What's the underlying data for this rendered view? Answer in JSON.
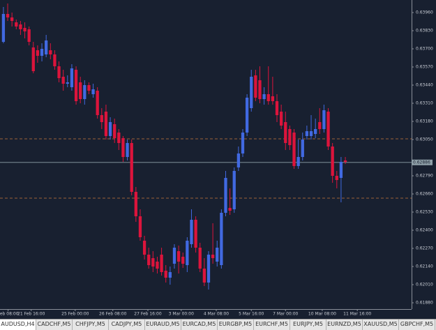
{
  "chart_data": {
    "type": "candlestick",
    "up_color": "#4169e1",
    "down_color": "#dc143c",
    "ylim": [
      0.61835,
      0.6405
    ],
    "yticks": [
      {
        "value": 0.6396,
        "label": "0.63960"
      },
      {
        "value": 0.6383,
        "label": "0.63830"
      },
      {
        "value": 0.637,
        "label": "0.63700"
      },
      {
        "value": 0.6357,
        "label": "0.63570"
      },
      {
        "value": 0.6344,
        "label": "0.63440"
      },
      {
        "value": 0.6331,
        "label": "0.63310"
      },
      {
        "value": 0.6318,
        "label": "0.63180"
      },
      {
        "value": 0.6305,
        "label": "0.63050"
      },
      {
        "value": 0.6279,
        "label": "0.62790"
      },
      {
        "value": 0.6266,
        "label": "0.62660"
      },
      {
        "value": 0.6253,
        "label": "0.62530"
      },
      {
        "value": 0.624,
        "label": "0.62400"
      },
      {
        "value": 0.6227,
        "label": "0.62270"
      },
      {
        "value": 0.6214,
        "label": "0.62140"
      },
      {
        "value": 0.6201,
        "label": "0.62010"
      },
      {
        "value": 0.6188,
        "label": "0.61880"
      }
    ],
    "xlim": [
      -0.8,
      95.5
    ],
    "xticks": [
      {
        "value": 1.1,
        "label": "Feb 08:00"
      },
      {
        "value": 6.5,
        "label": "21 Feb 16:00"
      },
      {
        "value": 16.8,
        "label": "25 Feb 00:00"
      },
      {
        "value": 25.6,
        "label": "26 Feb 08:00"
      },
      {
        "value": 33.8,
        "label": "27 Feb 16:00"
      },
      {
        "value": 41.6,
        "label": "3 Mar 00:00"
      },
      {
        "value": 49.8,
        "label": "4 Mar 08:00"
      },
      {
        "value": 58,
        "label": "5 Mar 16:00"
      },
      {
        "value": 66,
        "label": "7 Mar 00:00"
      },
      {
        "value": 74.6,
        "label": "10 Mar 08:00"
      },
      {
        "value": 82.8,
        "label": "11 Mar 16:00"
      }
    ],
    "open": [
      0.6375,
      0.6395,
      0.63925,
      0.6389,
      0.63875,
      0.6385,
      0.6384,
      0.6371,
      0.6369,
      0.6365,
      0.6366,
      0.6369,
      0.6366,
      0.63575,
      0.635,
      0.6345,
      0.63425,
      0.6355,
      0.6346,
      0.6334,
      0.6344,
      0.63375,
      0.634,
      0.63225,
      0.6325,
      0.63075,
      0.6316,
      0.631,
      0.6306,
      0.62925,
      0.63025,
      0.62675,
      0.625,
      0.62325,
      0.62225,
      0.622,
      0.62175,
      0.62225,
      0.6211,
      0.6206,
      0.6216,
      0.6225,
      0.6221,
      0.6215,
      0.623,
      0.62475,
      0.62275,
      0.62125,
      0.62025,
      0.62225,
      0.62175,
      0.6215,
      0.62525,
      0.6256,
      0.6255,
      0.6285,
      0.6295,
      0.631,
      0.63275,
      0.6351,
      0.63475,
      0.6334,
      0.63375,
      0.6336,
      0.63325,
      0.6325,
      0.63175,
      0.63125,
      0.631,
      0.6286,
      0.62925,
      0.63075,
      0.63075,
      0.6309,
      0.63175,
      0.63125,
      0.6325,
      0.63,
      0.6279,
      0.62775,
      0.629
    ],
    "high": [
      0.64,
      0.64025,
      0.6396,
      0.6391,
      0.639,
      0.6389,
      0.6386,
      0.6375,
      0.63725,
      0.6374,
      0.638,
      0.6374,
      0.6369,
      0.6361,
      0.6355,
      0.6351,
      0.6359,
      0.63575,
      0.635,
      0.63475,
      0.6346,
      0.6345,
      0.63425,
      0.63275,
      0.633,
      0.6321,
      0.632,
      0.63125,
      0.63075,
      0.6305,
      0.6305,
      0.6271,
      0.6255,
      0.6236,
      0.62275,
      0.6225,
      0.6221,
      0.62275,
      0.6215,
      0.6214,
      0.623,
      0.6229,
      0.6224,
      0.6235,
      0.6255,
      0.625,
      0.6231,
      0.622,
      0.6225,
      0.6245,
      0.62325,
      0.6255,
      0.62825,
      0.627,
      0.6285,
      0.63,
      0.63125,
      0.63375,
      0.6355,
      0.6355,
      0.63575,
      0.63425,
      0.63575,
      0.635,
      0.63375,
      0.633,
      0.6325,
      0.6315,
      0.63125,
      0.6305,
      0.631,
      0.6315,
      0.63225,
      0.632,
      0.63275,
      0.633,
      0.63275,
      0.63025,
      0.62825,
      0.62925,
      0.62925
    ],
    "low": [
      0.6374,
      0.639,
      0.6386,
      0.6384,
      0.638,
      0.63775,
      0.63725,
      0.63525,
      0.636,
      0.6361,
      0.6364,
      0.63625,
      0.6355,
      0.6346,
      0.634,
      0.63425,
      0.634,
      0.633,
      0.6331,
      0.633,
      0.63375,
      0.6335,
      0.632,
      0.63125,
      0.6305,
      0.6305,
      0.63025,
      0.62975,
      0.6289,
      0.629,
      0.6265,
      0.6246,
      0.62325,
      0.6219,
      0.62125,
      0.621,
      0.6209,
      0.62075,
      0.62025,
      0.6201,
      0.62125,
      0.6209,
      0.6213,
      0.621,
      0.62275,
      0.6224,
      0.621,
      0.62,
      0.61975,
      0.6216,
      0.6214,
      0.62125,
      0.625,
      0.6251,
      0.62525,
      0.62825,
      0.62925,
      0.63075,
      0.6325,
      0.63325,
      0.6331,
      0.633,
      0.633,
      0.633,
      0.63175,
      0.63125,
      0.62975,
      0.62975,
      0.6284,
      0.6284,
      0.629,
      0.6305,
      0.6305,
      0.6306,
      0.6309,
      0.631,
      0.62975,
      0.6274,
      0.627,
      0.626,
      0.62875
    ],
    "close": [
      0.6395,
      0.63925,
      0.639,
      0.6386,
      0.6384,
      0.63825,
      0.6375,
      0.6354,
      0.6365,
      0.637,
      0.6376,
      0.6366,
      0.63575,
      0.6349,
      0.6345,
      0.6346,
      0.6356,
      0.63325,
      0.6334,
      0.6344,
      0.634,
      0.6341,
      0.63225,
      0.63175,
      0.63075,
      0.63175,
      0.6306,
      0.63025,
      0.62925,
      0.63025,
      0.62675,
      0.625,
      0.6235,
      0.62225,
      0.6215,
      0.6214,
      0.62125,
      0.621,
      0.6206,
      0.621,
      0.62275,
      0.62175,
      0.6216,
      0.62325,
      0.62475,
      0.62275,
      0.62125,
      0.62025,
      0.62225,
      0.622,
      0.62275,
      0.62525,
      0.62775,
      0.6254,
      0.62825,
      0.6295,
      0.631,
      0.6335,
      0.635,
      0.6335,
      0.6334,
      0.63375,
      0.63325,
      0.63325,
      0.63225,
      0.6315,
      0.63025,
      0.6301,
      0.6286,
      0.62925,
      0.6305,
      0.6311,
      0.6311,
      0.63125,
      0.63125,
      0.6326,
      0.63,
      0.6279,
      0.6276,
      0.6289,
      0.6289
    ],
    "levels": [
      {
        "value": 0.63055,
        "color": "#c8783c"
      },
      {
        "value": 0.6263,
        "color": "#c8783c"
      }
    ],
    "bid": {
      "value": 0.62886,
      "label": "0.62886",
      "color": "#8fa0a8"
    }
  },
  "tabs": [
    "AUDUSD,H4",
    "CADCHF,M5",
    "CHFJPY,M5",
    "CADJPY,M5",
    "EURAUD,M5",
    "EURCAD,M5",
    "EURGBP,M5",
    "EURCHF,M5",
    "EURJPY,M5",
    "EURNZD,M5",
    "XAUUSD,M5",
    "GBPCHF,M5"
  ]
}
